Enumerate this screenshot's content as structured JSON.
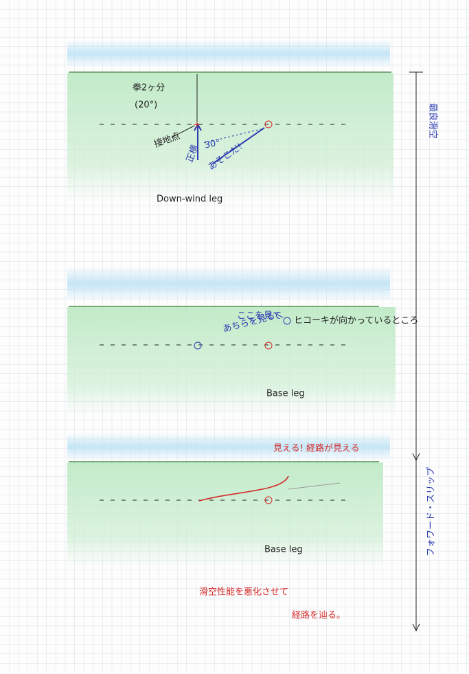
{
  "panel1": {
    "angle_note": "拳2ヶ分",
    "angle_value": "(20°)",
    "touchdown": "接地点",
    "abeam": "正横",
    "angle": "30°",
    "there": "あそこだ!",
    "label": "Down-wind leg"
  },
  "panel2": {
    "look_here": "ここを見て",
    "look_there": "あちらを見る",
    "heading": "ヒコーキが向かっているところ",
    "label": "Base leg"
  },
  "panel3": {
    "visible": "見える! 経路が見える",
    "label": "Base leg"
  },
  "footer": {
    "line1": "滑空性能を悪化させて",
    "line2": "経路を辿る。"
  },
  "side": {
    "best_glide": "最良滑空",
    "forward_slip": "フォワード・スリップ"
  }
}
